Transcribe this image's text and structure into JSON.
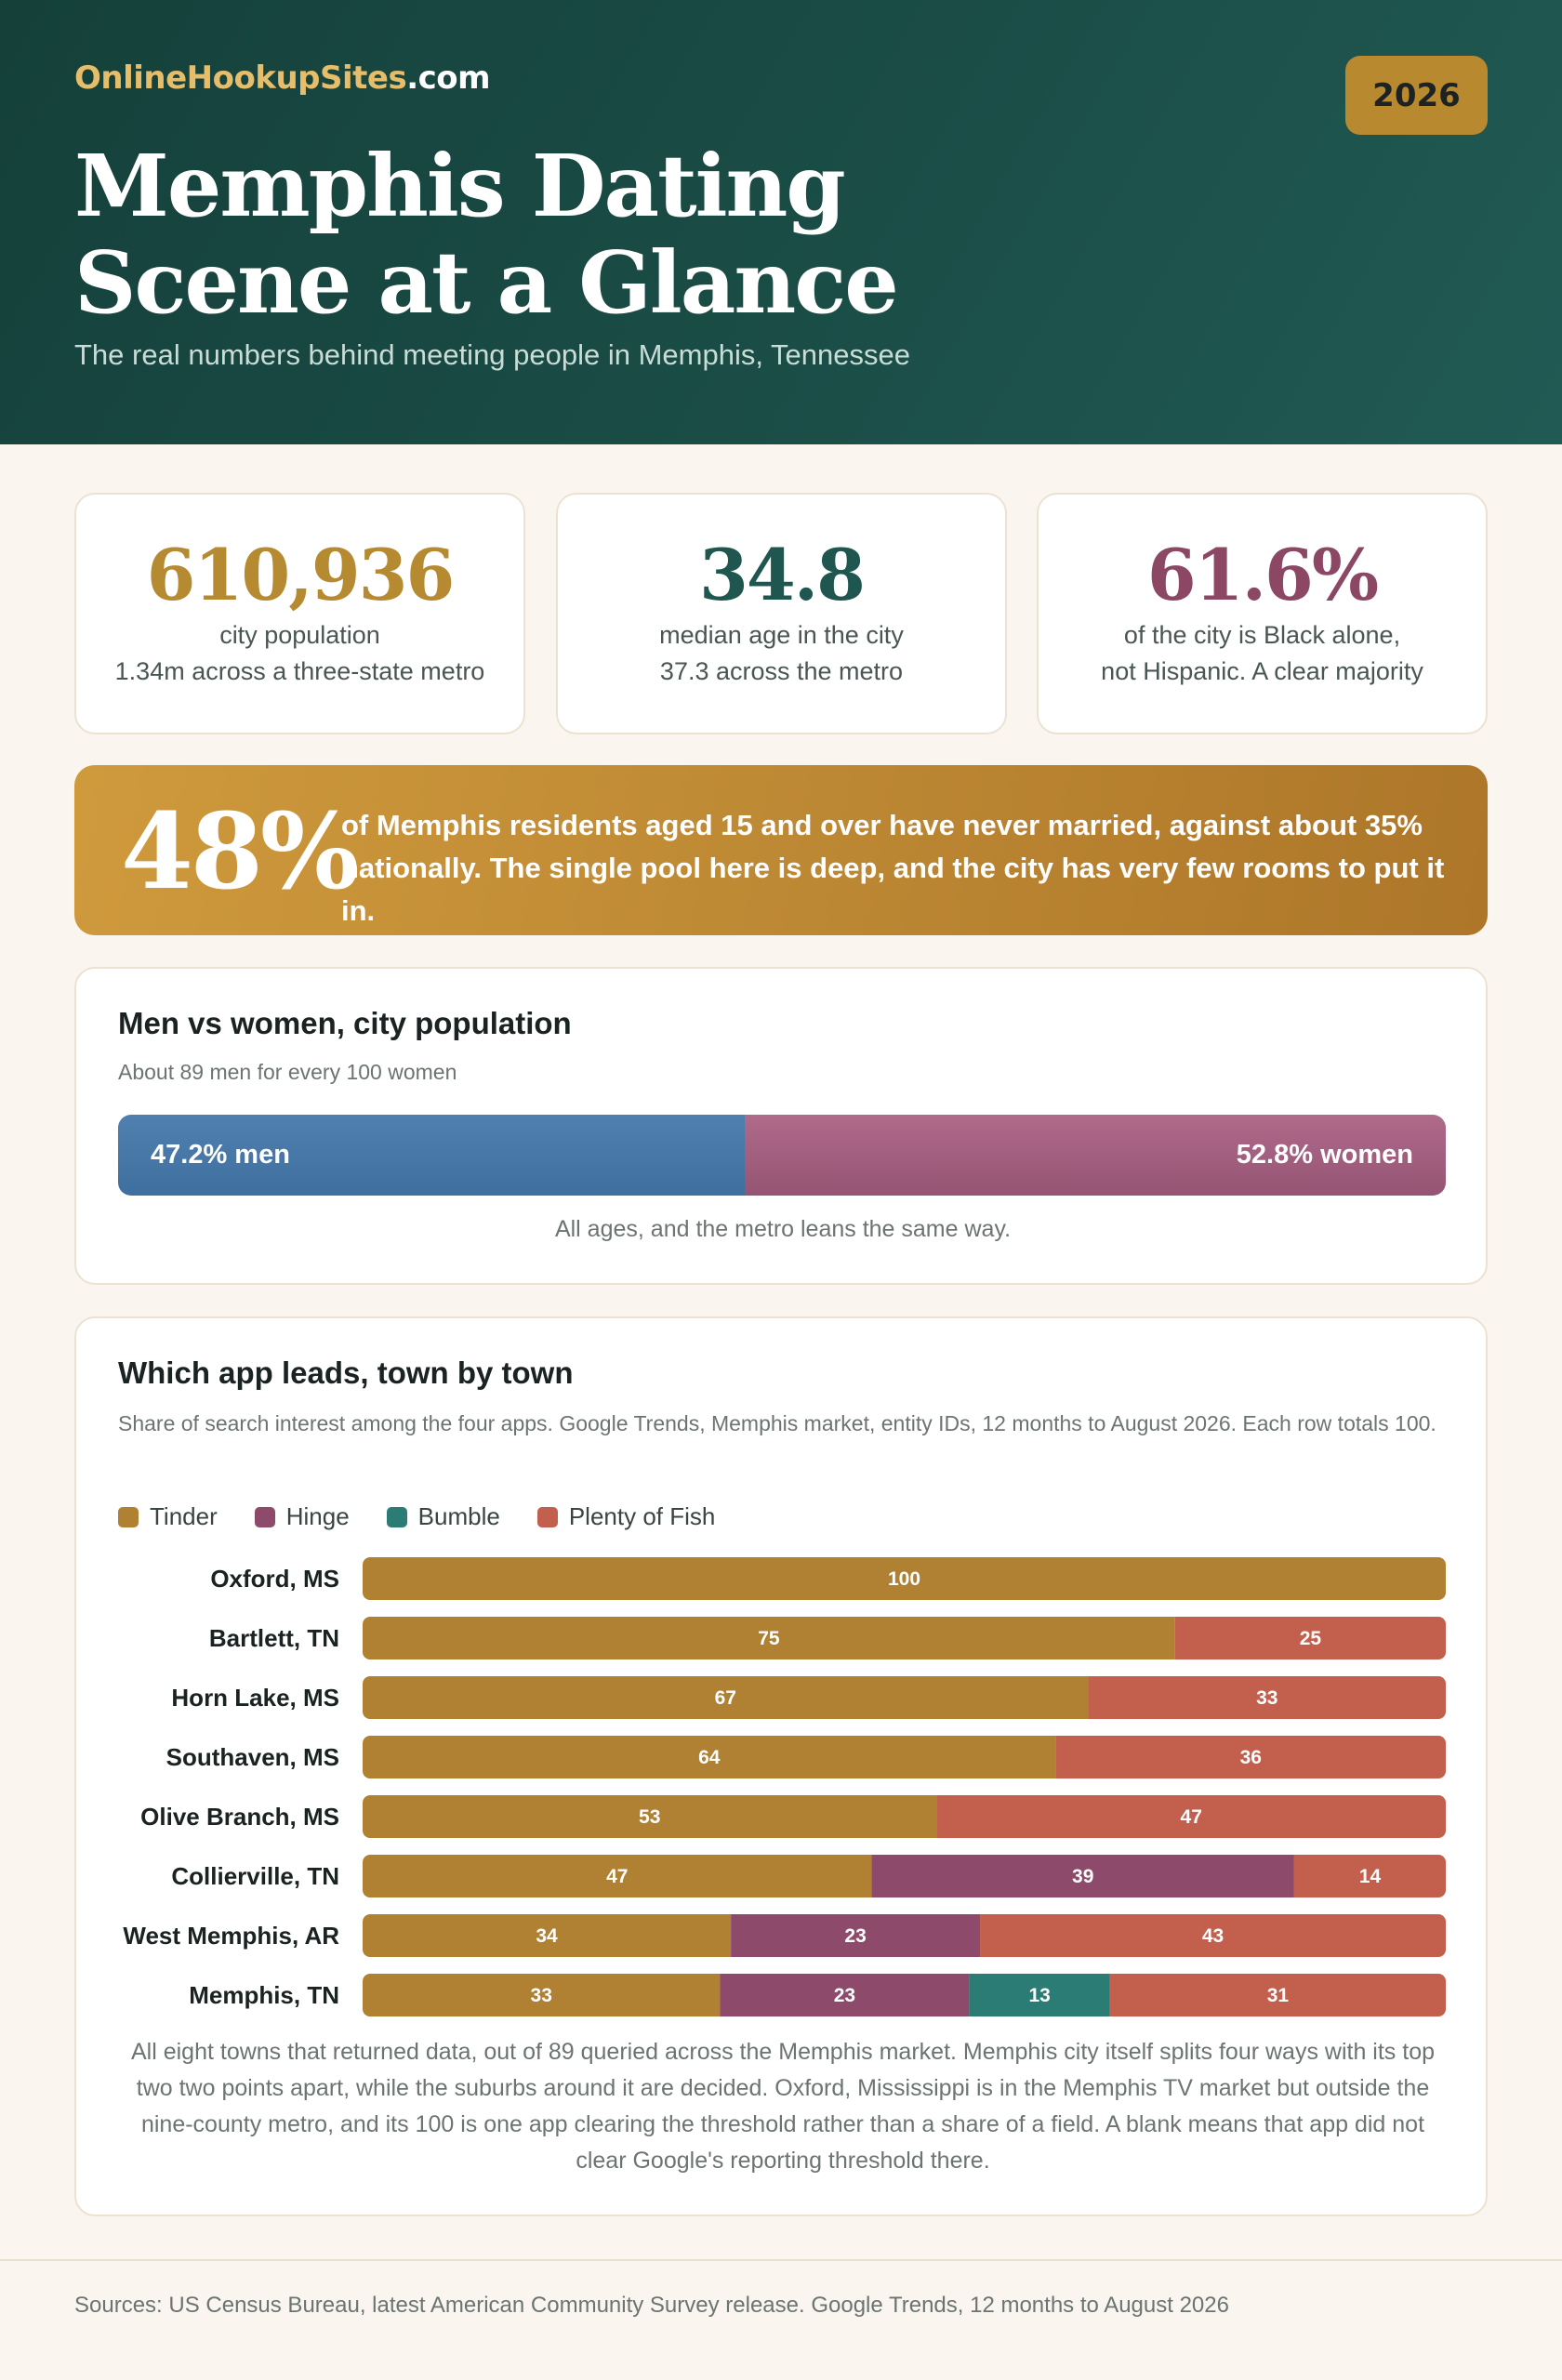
{
  "header": {
    "brand_primary": "OnlineHookupSites",
    "brand_suffix": ".com",
    "year": "2026",
    "title_line1": "Memphis Dating",
    "title_line2": "Scene at a Glance",
    "subtitle": "The real numbers behind meeting people in Memphis, Tennessee"
  },
  "stats": [
    {
      "value": "610,936",
      "line1": "city population",
      "line2": "1.34m across a three-state metro"
    },
    {
      "value": "34.8",
      "line1": "median age in the city",
      "line2": "37.3 across the metro"
    },
    {
      "value": "61.6%",
      "line1": "of the city is Black alone,",
      "line2": "not Hispanic. A clear majority"
    }
  ],
  "callout": {
    "big": "48%",
    "text": "of Memphis residents aged 15 and over have never married, against about 35% nationally. The single pool here is deep, and the city has very few rooms to put it in."
  },
  "gender": {
    "title": "Men vs women, city population",
    "subtitle": "About 89 men for every 100 women",
    "men_label": "47.2% men",
    "women_label": "52.8% women",
    "men_pct": 47.2,
    "women_pct": 52.8,
    "note": "All ages, and the metro leans the same way."
  },
  "apps": {
    "title": "Which app leads, town by town",
    "subtitle": "Share of search interest among the four apps. Google Trends, Memphis market, entity IDs, 12 months to August 2026. Each row totals 100.",
    "note": "All eight towns that returned data, out of 89 queried across the Memphis market. Memphis city itself splits four ways with its top two two points apart, while the suburbs around it are decided. Oxford, Mississippi is in the Memphis TV market but outside the nine-county metro, and its 100 is one app clearing the threshold rather than a share of a field. A blank means that app did not clear Google's reporting threshold there."
  },
  "chart_data": {
    "type": "bar",
    "orientation": "horizontal",
    "stacked": true,
    "categories": [
      "Oxford, MS",
      "Bartlett, TN",
      "Horn Lake, MS",
      "Southaven, MS",
      "Olive Branch, MS",
      "Collierville, TN",
      "West Memphis, AR",
      "Memphis, TN"
    ],
    "series": [
      {
        "name": "Tinder",
        "color": "#b08132",
        "values": [
          100,
          75,
          67,
          64,
          53,
          47,
          34,
          33
        ]
      },
      {
        "name": "Hinge",
        "color": "#8e4a6a",
        "values": [
          null,
          null,
          null,
          null,
          null,
          39,
          23,
          23
        ]
      },
      {
        "name": "Bumble",
        "color": "#2b7c75",
        "values": [
          null,
          null,
          null,
          null,
          null,
          null,
          null,
          13
        ]
      },
      {
        "name": "Plenty of Fish",
        "color": "#c35f4d",
        "values": [
          null,
          25,
          33,
          36,
          47,
          14,
          43,
          31
        ]
      }
    ],
    "xlim": [
      0,
      100
    ],
    "legend": "top-left"
  },
  "footer": {
    "sources": "Sources: US Census Bureau, latest American Community Survey release. Google Trends, 12 months to August 2026"
  }
}
